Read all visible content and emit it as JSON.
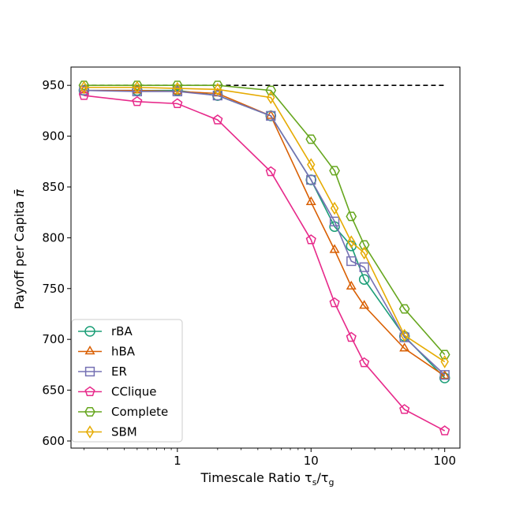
{
  "chart_data": {
    "type": "line",
    "xscale": "log",
    "xlim": [
      0.16,
      130
    ],
    "ylim": [
      593,
      968
    ],
    "xticks": [
      1,
      10,
      100
    ],
    "xtick_labels": [
      "1",
      "10",
      "100"
    ],
    "yticks": [
      600,
      650,
      700,
      750,
      800,
      850,
      900,
      950
    ],
    "ytick_labels": [
      "600",
      "650",
      "700",
      "750",
      "800",
      "850",
      "900",
      "950"
    ],
    "xlabel": "Timescale Ratio τ",
    "xlabel_sub1": "s",
    "xlabel_slash": "/τ",
    "xlabel_sub2": "g",
    "ylabel": "Payoff per Capita ",
    "ylabel_symbol": "π̄",
    "reference_line": {
      "y": 950,
      "x_range": [
        0.2,
        100
      ],
      "style": "dashed",
      "color": "#000000"
    },
    "legend_position": "lower-left",
    "x": [
      0.2,
      0.5,
      1,
      2,
      5,
      10,
      15,
      20,
      25,
      50,
      100
    ],
    "series": [
      {
        "name": "rBA",
        "color": "#1b9e77",
        "marker": "circle",
        "values": [
          945,
          945,
          945,
          940,
          920,
          857,
          811,
          792,
          759,
          703,
          662
        ]
      },
      {
        "name": "hBA",
        "color": "#d95f02",
        "marker": "triangle",
        "values": [
          945,
          945,
          944,
          942,
          920,
          835,
          788,
          752,
          733,
          691,
          664
        ]
      },
      {
        "name": "ER",
        "color": "#7570b3",
        "marker": "square",
        "values": [
          945,
          944,
          944,
          940,
          920,
          857,
          816,
          777,
          771,
          702,
          665
        ]
      },
      {
        "name": "CClique",
        "color": "#e7298a",
        "marker": "pentagon",
        "values": [
          940,
          934,
          932,
          916,
          865,
          798,
          736,
          702,
          677,
          631,
          610
        ]
      },
      {
        "name": "Complete",
        "color": "#66a61e",
        "marker": "hexagon",
        "values": [
          950,
          950,
          950,
          950,
          945,
          897,
          866,
          821,
          793,
          730,
          685
        ]
      },
      {
        "name": "SBM",
        "color": "#e6ab02",
        "marker": "diamond",
        "values": [
          948,
          948,
          947,
          946,
          938,
          872,
          829,
          796,
          785,
          704,
          678
        ]
      }
    ]
  }
}
